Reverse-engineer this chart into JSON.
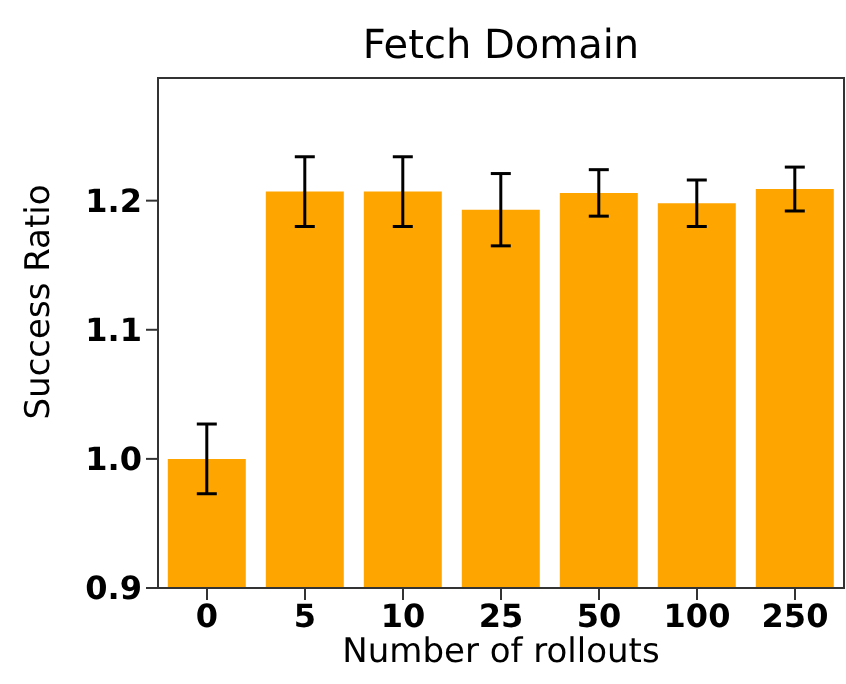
{
  "chart_data": {
    "type": "bar",
    "title": "Fetch Domain",
    "xlabel": "Number of rollouts",
    "ylabel": "Success Ratio",
    "categories": [
      "0",
      "5",
      "10",
      "25",
      "50",
      "100",
      "250"
    ],
    "values": [
      1.0,
      1.207,
      1.207,
      1.193,
      1.206,
      1.198,
      1.209
    ],
    "errors": [
      0.027,
      0.027,
      0.027,
      0.028,
      0.018,
      0.018,
      0.017
    ],
    "color": "#ffa500",
    "ylim": [
      0.9,
      1.295
    ],
    "yticks": [
      0.9,
      {
        "value": 1,
        "label": "1.0"
      },
      1.1,
      1.2
    ],
    "grid": false,
    "legend": false
  }
}
